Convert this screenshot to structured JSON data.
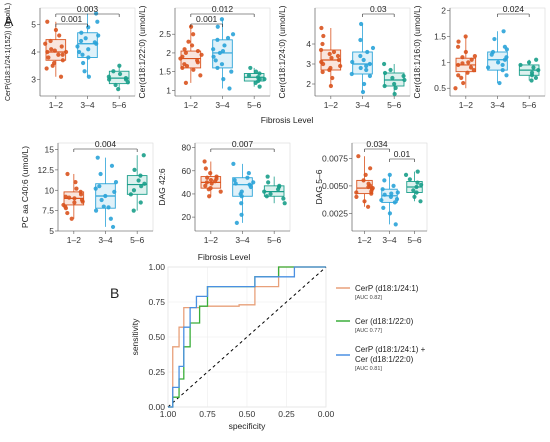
{
  "figure": {
    "label_a": "A",
    "label_b": "B"
  },
  "colors": {
    "g1": "#d9531e",
    "g2": "#2aa3d8",
    "g3": "#1a9e8a",
    "roc_cerp": "#e8a07a",
    "roc_cer": "#3aae3a",
    "roc_combo": "#4a90e2",
    "diag": "#000000"
  },
  "chart_data": [
    {
      "type": "box",
      "ylabel": "CerP(d18:1/24:1(15Z)) (umol/L)",
      "categories": [
        "1–2",
        "3–4",
        "5–6"
      ],
      "yticks": [
        3,
        4,
        5
      ],
      "ylim": [
        2.4,
        5.6
      ],
      "boxes": [
        {
          "q1": 3.7,
          "median": 4.0,
          "q3": 4.45,
          "lo": 3.1,
          "hi": 5.1
        },
        {
          "q1": 3.8,
          "median": 4.3,
          "q3": 4.7,
          "lo": 3.1,
          "hi": 5.4
        },
        {
          "q1": 2.85,
          "median": 3.05,
          "q3": 3.3,
          "lo": 2.65,
          "hi": 3.5
        }
      ],
      "points": [
        [
          3.1,
          3.4,
          3.6,
          3.7,
          3.8,
          3.9,
          4.0,
          4.0,
          4.1,
          4.2,
          4.3,
          4.4,
          4.6,
          4.8,
          5.1,
          3.5,
          3.9,
          4.05
        ],
        [
          3.1,
          3.3,
          3.6,
          3.8,
          4.0,
          4.2,
          4.3,
          4.4,
          4.5,
          4.6,
          4.7,
          4.9,
          5.1,
          5.4,
          3.9,
          4.1,
          4.35
        ],
        [
          2.65,
          2.8,
          2.9,
          3.0,
          3.05,
          3.1,
          3.2,
          3.3,
          3.5,
          3.0
        ]
      ],
      "significance": [
        {
          "from": 0,
          "to": 2,
          "label": "0.003"
        },
        {
          "from": 0,
          "to": 1,
          "label": "0.001"
        }
      ]
    },
    {
      "type": "box",
      "ylabel": "Cer(d18:1/22:0) (umol/L)",
      "categories": [
        "1–2",
        "3–4",
        "5–6"
      ],
      "yticks": [
        1.0,
        1.5,
        2.0,
        2.5
      ],
      "ylim": [
        0.85,
        3.2
      ],
      "boxes": [
        {
          "q1": 1.6,
          "median": 1.85,
          "q3": 2.05,
          "lo": 1.2,
          "hi": 2.7
        },
        {
          "q1": 1.6,
          "median": 2.0,
          "q3": 2.35,
          "lo": 1.05,
          "hi": 2.9
        },
        {
          "q1": 1.25,
          "median": 1.35,
          "q3": 1.45,
          "lo": 1.1,
          "hi": 1.6
        }
      ],
      "points": [
        [
          1.2,
          1.4,
          1.55,
          1.6,
          1.7,
          1.75,
          1.8,
          1.85,
          1.9,
          2.0,
          2.05,
          2.1,
          2.3,
          2.5,
          2.7,
          1.65,
          1.95,
          2.2
        ],
        [
          1.05,
          1.3,
          1.5,
          1.6,
          1.8,
          1.9,
          2.0,
          2.1,
          2.2,
          2.35,
          2.5,
          2.7,
          2.9,
          1.7,
          2.4,
          2.05
        ],
        [
          1.1,
          1.2,
          1.25,
          1.3,
          1.35,
          1.4,
          1.45,
          1.5,
          1.6,
          1.3
        ]
      ],
      "significance": [
        {
          "from": 0,
          "to": 2,
          "label": "0.012"
        },
        {
          "from": 0,
          "to": 1,
          "label": "0.001"
        }
      ]
    },
    {
      "type": "box",
      "ylabel": "Cer(d18:1/24:0) (umol/L)",
      "categories": [
        "1–2",
        "3–4",
        "5–6"
      ],
      "yticks": [
        2,
        3,
        4
      ],
      "ylim": [
        1.4,
        5.8
      ],
      "boxes": [
        {
          "q1": 2.7,
          "median": 3.2,
          "q3": 3.7,
          "lo": 1.9,
          "hi": 4.8
        },
        {
          "q1": 2.5,
          "median": 3.0,
          "q3": 3.6,
          "lo": 1.6,
          "hi": 5.0
        },
        {
          "q1": 1.9,
          "median": 2.2,
          "q3": 2.55,
          "lo": 1.5,
          "hi": 3.0
        }
      ],
      "points": [
        [
          1.9,
          2.3,
          2.6,
          2.7,
          2.9,
          3.0,
          3.1,
          3.2,
          3.3,
          3.5,
          3.6,
          3.7,
          4.0,
          4.4,
          4.8,
          2.8,
          3.4
        ],
        [
          1.6,
          2.0,
          2.4,
          2.5,
          2.7,
          2.9,
          3.0,
          3.2,
          3.4,
          3.6,
          3.8,
          4.2,
          5.0,
          2.8,
          3.1
        ],
        [
          1.5,
          1.8,
          1.9,
          2.0,
          2.2,
          2.3,
          2.4,
          2.55,
          2.7,
          3.0
        ]
      ],
      "significance": [
        {
          "from": 1,
          "to": 2,
          "label": "0.03"
        }
      ]
    },
    {
      "type": "box",
      "ylabel": "Cer(d18:1/16:0) (umol/L)",
      "categories": [
        "1–2",
        "3–4",
        "5–6"
      ],
      "yticks": [
        0.5,
        1.0,
        1.5,
        2.0
      ],
      "ylim": [
        0.35,
        2.05
      ],
      "boxes": [
        {
          "q1": 0.82,
          "median": 0.95,
          "q3": 1.08,
          "lo": 0.5,
          "hi": 1.5
        },
        {
          "q1": 0.85,
          "median": 1.05,
          "q3": 1.2,
          "lo": 0.6,
          "hi": 1.6
        },
        {
          "q1": 0.75,
          "median": 0.85,
          "q3": 0.95,
          "lo": 0.65,
          "hi": 1.05
        }
      ],
      "points": [
        [
          0.5,
          0.6,
          0.7,
          0.8,
          0.85,
          0.9,
          0.95,
          1.0,
          1.05,
          1.1,
          1.2,
          1.3,
          1.4,
          1.5,
          0.75,
          0.98,
          1.12
        ],
        [
          0.6,
          0.75,
          0.85,
          0.95,
          1.0,
          1.05,
          1.1,
          1.15,
          1.2,
          1.3,
          1.45,
          1.6,
          0.9,
          1.25
        ],
        [
          0.65,
          0.7,
          0.75,
          0.8,
          0.85,
          0.9,
          0.95,
          1.0,
          1.05
        ]
      ],
      "significance": [
        {
          "from": 1,
          "to": 2,
          "label": "0.024"
        }
      ]
    },
    {
      "type": "box",
      "ylabel": "PC aa C40:6 (umol/L)",
      "categories": [
        "1–2",
        "3–4",
        "5–6"
      ],
      "yticks": [
        5.0,
        7.5,
        10.0,
        12.5,
        15.0
      ],
      "ylim": [
        5.0,
        15.8
      ],
      "boxes": [
        {
          "q1": 8.2,
          "median": 9.0,
          "q3": 9.8,
          "lo": 6.5,
          "hi": 12.0
        },
        {
          "q1": 7.8,
          "median": 9.3,
          "q3": 10.8,
          "lo": 5.5,
          "hi": 14.0
        },
        {
          "q1": 9.5,
          "median": 10.7,
          "q3": 11.8,
          "lo": 7.5,
          "hi": 14.3
        }
      ],
      "points": [
        [
          6.5,
          7.2,
          7.8,
          8.2,
          8.5,
          8.8,
          9.0,
          9.2,
          9.5,
          9.8,
          10.2,
          11.0,
          12.0,
          8.0,
          9.1,
          8.6
        ],
        [
          5.5,
          6.5,
          7.5,
          8.0,
          8.8,
          9.3,
          9.8,
          10.5,
          11.0,
          12.0,
          13.0,
          14.0,
          7.9,
          10.2
        ],
        [
          7.5,
          8.5,
          9.5,
          10.0,
          10.5,
          10.8,
          11.2,
          11.8,
          12.5,
          14.3
        ]
      ],
      "significance": [
        {
          "from": 0,
          "to": 2,
          "label": "0.004"
        }
      ]
    },
    {
      "type": "box",
      "ylabel": "DAG 42:6",
      "categories": [
        "1–2",
        "3–4",
        "5–6"
      ],
      "yticks": [
        20,
        40,
        60,
        80
      ],
      "ylim": [
        8,
        84
      ],
      "boxes": [
        {
          "q1": 45,
          "median": 50,
          "q3": 55,
          "lo": 38,
          "hi": 68
        },
        {
          "q1": 38,
          "median": 48,
          "q3": 54,
          "lo": 15,
          "hi": 66
        },
        {
          "q1": 38,
          "median": 42,
          "q3": 47,
          "lo": 32,
          "hi": 55
        }
      ],
      "points": [
        [
          38,
          42,
          45,
          47,
          49,
          50,
          51,
          52,
          54,
          55,
          58,
          62,
          68,
          44,
          53
        ],
        [
          15,
          22,
          32,
          38,
          42,
          46,
          48,
          50,
          52,
          54,
          58,
          66,
          40,
          49
        ],
        [
          32,
          36,
          38,
          40,
          42,
          44,
          46,
          47,
          50,
          55
        ]
      ],
      "significance": [
        {
          "from": 0,
          "to": 2,
          "label": "0.007"
        }
      ]
    },
    {
      "type": "box",
      "ylabel": "DAG 5–6",
      "categories": [
        "1–2",
        "3–4",
        "5–6"
      ],
      "yticks": [
        0.0025,
        0.005,
        0.0075
      ],
      "ylim": [
        0.0009,
        0.0089
      ],
      "boxes": [
        {
          "q1": 0.0043,
          "median": 0.0048,
          "q3": 0.0055,
          "lo": 0.0031,
          "hi": 0.0077
        },
        {
          "q1": 0.0035,
          "median": 0.0041,
          "q3": 0.0047,
          "lo": 0.0015,
          "hi": 0.006
        },
        {
          "q1": 0.0044,
          "median": 0.0049,
          "q3": 0.0054,
          "lo": 0.0036,
          "hi": 0.0063
        }
      ],
      "points": [
        [
          0.0031,
          0.0036,
          0.004,
          0.0043,
          0.0045,
          0.0047,
          0.0048,
          0.005,
          0.0052,
          0.0055,
          0.006,
          0.0066,
          0.0077,
          0.0044,
          0.0049
        ],
        [
          0.0015,
          0.0025,
          0.003,
          0.0035,
          0.0038,
          0.004,
          0.0042,
          0.0044,
          0.0047,
          0.005,
          0.0055,
          0.006,
          0.0037,
          0.0043
        ],
        [
          0.0036,
          0.004,
          0.0044,
          0.0046,
          0.0049,
          0.0051,
          0.0053,
          0.0056,
          0.006,
          0.0063
        ]
      ],
      "significance": [
        {
          "from": 0,
          "to": 1,
          "label": "0.034"
        },
        {
          "from": 1,
          "to": 2,
          "label": "0.01"
        }
      ]
    },
    {
      "type": "line",
      "xlabel": "specificity",
      "ylabel": "sensitivity",
      "xlim": [
        1.0,
        0.0
      ],
      "ylim": [
        0.0,
        1.0
      ],
      "xticks": [
        1.0,
        0.75,
        0.5,
        0.25,
        0.0
      ],
      "yticks": [
        0.0,
        0.25,
        0.5,
        0.75,
        1.0
      ],
      "series": [
        {
          "name": "CerP (d18:1/24:1)",
          "auc": "[AUC 0.82]",
          "colorKey": "roc_cerp",
          "x": [
            1.0,
            0.97,
            0.97,
            0.93,
            0.93,
            0.9,
            0.9,
            0.86,
            0.86,
            0.8,
            0.8,
            0.7,
            0.7,
            0.55,
            0.55,
            0.45,
            0.45,
            0.3,
            0.3,
            0.1,
            0.1,
            0.0
          ],
          "y": [
            0.0,
            0.0,
            0.43,
            0.43,
            0.57,
            0.57,
            0.71,
            0.71,
            0.71,
            0.71,
            0.72,
            0.72,
            0.72,
            0.72,
            0.73,
            0.73,
            0.86,
            0.86,
            1.0,
            1.0,
            1.0,
            1.0
          ]
        },
        {
          "name": "Cer (d18:1/22:0)",
          "auc": "[AUC 0.77]",
          "colorKey": "roc_cer",
          "x": [
            1.0,
            0.97,
            0.97,
            0.93,
            0.93,
            0.9,
            0.9,
            0.86,
            0.86,
            0.8,
            0.8,
            0.75,
            0.75,
            0.45,
            0.45,
            0.3,
            0.3,
            0.0
          ],
          "y": [
            0.0,
            0.0,
            0.07,
            0.07,
            0.2,
            0.2,
            0.43,
            0.43,
            0.6,
            0.6,
            0.72,
            0.72,
            0.86,
            0.86,
            0.93,
            0.93,
            1.0,
            1.0
          ]
        },
        {
          "name": "CerP (d18:1/24:1) + Cer (d18:1/22:0)",
          "auc": "[AUC 0.81]",
          "colorKey": "roc_combo",
          "x": [
            1.0,
            0.97,
            0.97,
            0.93,
            0.93,
            0.9,
            0.9,
            0.86,
            0.86,
            0.82,
            0.82,
            0.75,
            0.75,
            0.45,
            0.45,
            0.2,
            0.2,
            0.0
          ],
          "y": [
            0.0,
            0.0,
            0.14,
            0.14,
            0.29,
            0.29,
            0.57,
            0.57,
            0.71,
            0.71,
            0.79,
            0.79,
            0.86,
            0.86,
            0.93,
            0.93,
            1.0,
            1.0
          ]
        }
      ]
    }
  ],
  "labels": {
    "fibrosis_top": "Fibrosis Level",
    "fibrosis_bottom": "Fibrosis Level",
    "legend_cerp": "CerP (d18:1/24:1)",
    "legend_cerp_auc": "[AUC 0.82]",
    "legend_cer": "Cer (d18:1/22:0)",
    "legend_cer_auc": "[AUC 0.77]",
    "legend_combo_1": "CerP (d18:1/24:1) +",
    "legend_combo_2": "Cer (d18:1/22:0)",
    "legend_combo_auc": "[AUC 0.81]"
  }
}
